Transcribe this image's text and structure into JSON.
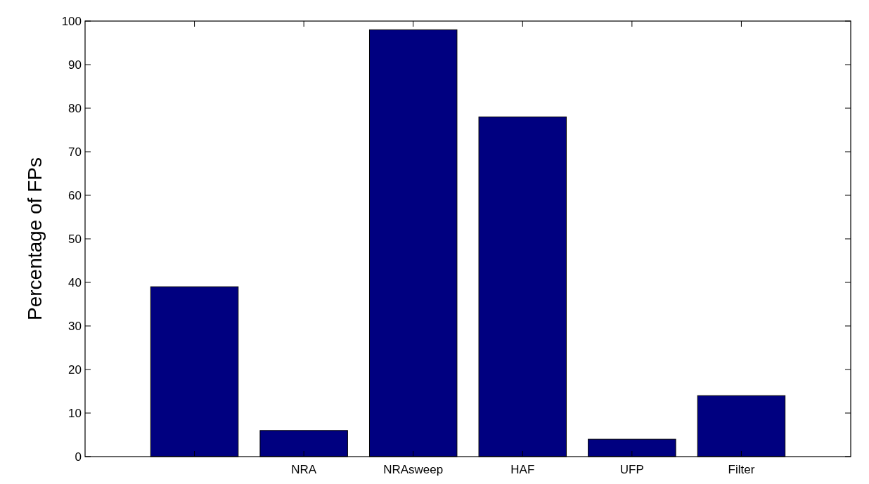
{
  "chart_data": {
    "type": "bar",
    "ylabel": "Percentage of FPs",
    "categories": [
      null,
      "NRA",
      "NRAsweep",
      "HAF",
      "UFP",
      "Filter"
    ],
    "values": [
      39,
      6,
      98,
      78,
      4,
      14
    ],
    "color": "#000080",
    "ylim": [
      0,
      100
    ],
    "yticks": [
      0,
      10,
      20,
      30,
      40,
      50,
      60,
      70,
      80,
      90,
      100
    ]
  }
}
